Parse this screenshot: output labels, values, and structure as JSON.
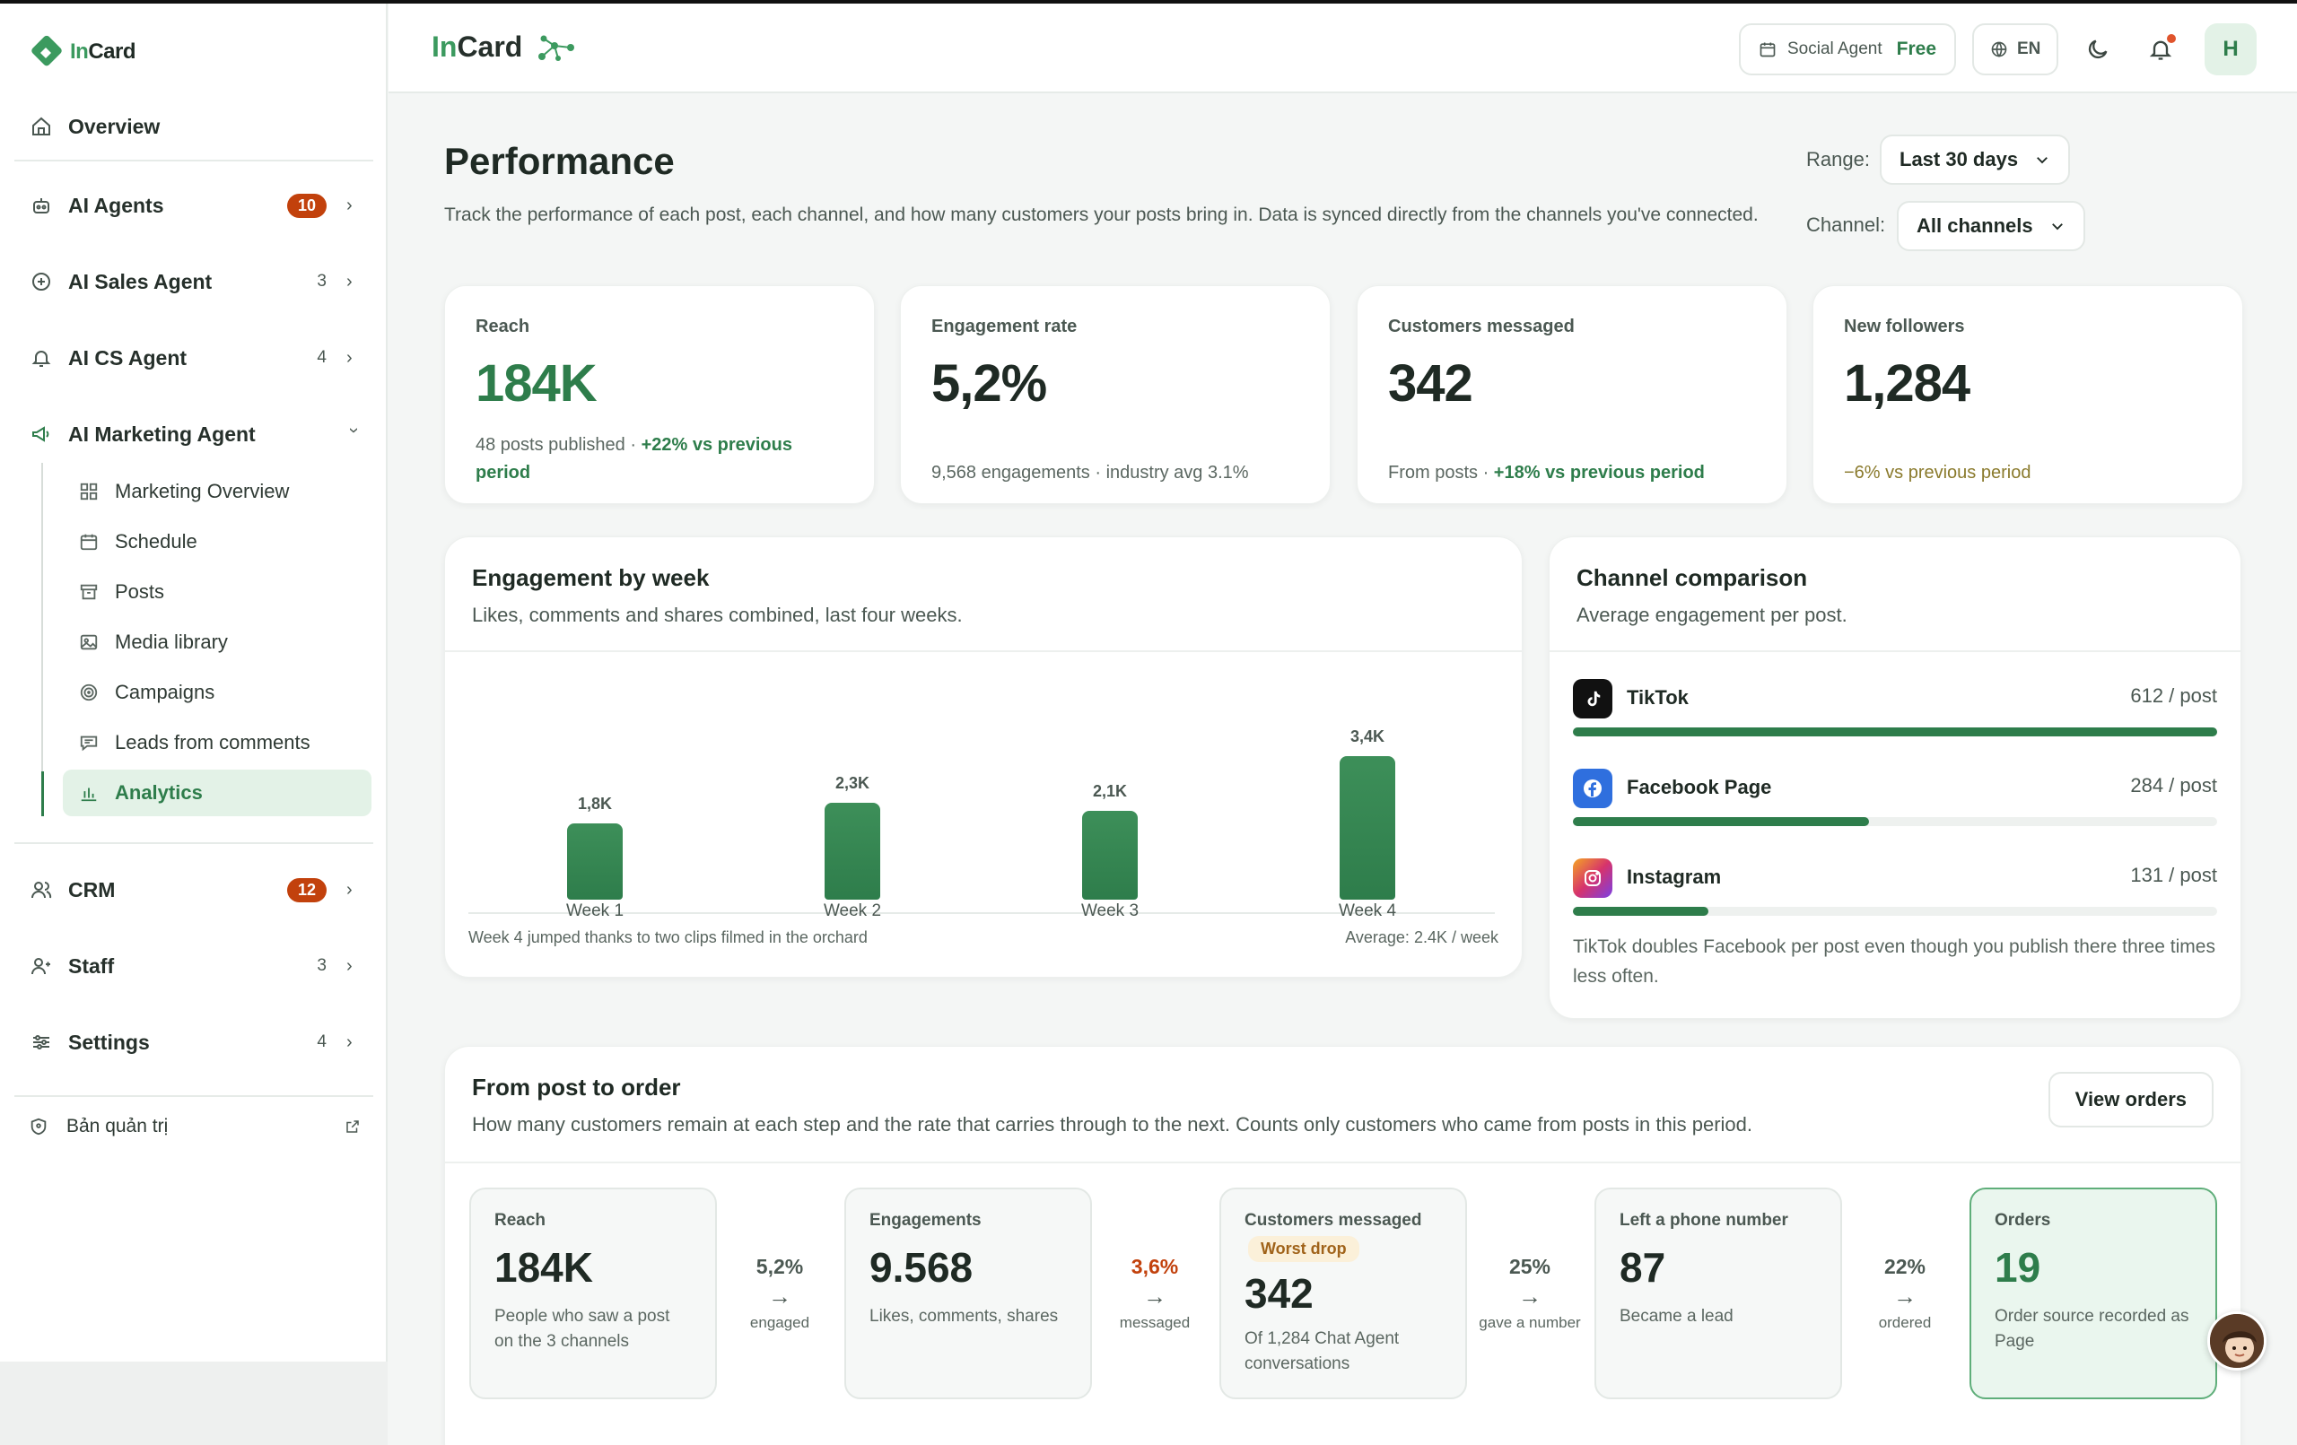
{
  "sidebar": {
    "logo": {
      "prefix": "In",
      "suffix": "Card"
    },
    "overview": "Overview",
    "items": [
      {
        "label": "AI Agents",
        "badge": "10"
      },
      {
        "label": "AI Sales Agent",
        "count": "3"
      },
      {
        "label": "AI CS Agent",
        "count": "4"
      },
      {
        "label": "AI Marketing Agent"
      }
    ],
    "sub_items": [
      "Marketing Overview",
      "Schedule",
      "Posts",
      "Media library",
      "Campaigns",
      "Leads from comments",
      "Analytics"
    ],
    "bottom_items": [
      {
        "label": "CRM",
        "badge": "12"
      },
      {
        "label": "Staff",
        "count": "3"
      },
      {
        "label": "Settings",
        "count": "4"
      }
    ],
    "admin": "Bản quản trị"
  },
  "topbar": {
    "brand_prefix": "In",
    "brand_suffix": "Card",
    "plan_label": "Social Agent",
    "plan_tier": "Free",
    "language": "EN",
    "avatar_initial": "H"
  },
  "page": {
    "title": "Performance",
    "subtitle": "Track the performance of each post, each channel, and how many customers your posts bring in. Data is synced directly from the channels you've connected.",
    "range_label": "Range:",
    "range_value": "Last 30 days",
    "channel_label": "Channel:",
    "channel_value": "All channels"
  },
  "kpis": [
    {
      "label": "Reach",
      "value": "184K",
      "note": "48 posts published · ",
      "delta": "+22% vs previous period"
    },
    {
      "label": "Engagement rate",
      "value": "5,2%",
      "note": "9,568 engagements · industry avg 3.1%"
    },
    {
      "label": "Customers messaged",
      "value": "342",
      "note": "From posts · ",
      "delta": "+18% vs previous period"
    },
    {
      "label": "New followers",
      "value": "1,284",
      "delta": "−6% vs previous period"
    }
  ],
  "engagement_panel": {
    "title": "Engagement by week",
    "subtitle": "Likes, comments and shares combined, last four weeks.",
    "footnote": "Week 4 jumped thanks to two clips filmed in the orchard",
    "average": "Average: 2.4K / week"
  },
  "chart_data": {
    "type": "bar",
    "categories": [
      "Week 1",
      "Week 2",
      "Week 3",
      "Week 4"
    ],
    "values": [
      1.8,
      2.3,
      2.1,
      3.4
    ],
    "value_labels": [
      "1,8K",
      "2,3K",
      "2,1K",
      "3,4K"
    ],
    "ylim": [
      0,
      3.4
    ],
    "color": "#2e7d4b"
  },
  "channel_panel": {
    "title": "Channel comparison",
    "subtitle": "Average engagement per post.",
    "channels": [
      {
        "name": "TikTok",
        "value": "612 / post",
        "fraction": 1.0,
        "color": "#111111"
      },
      {
        "name": "Facebook Page",
        "value": "284 / post",
        "fraction": 0.46,
        "color": "#2f6fde"
      },
      {
        "name": "Instagram",
        "value": "131 / post",
        "fraction": 0.21,
        "color": "#d6336c"
      }
    ],
    "note": "TikTok doubles Facebook per post even though you publish there three times less often."
  },
  "funnel": {
    "title": "From post to order",
    "subtitle": "How many customers remain at each step and the rate that carries through to the next. Counts only customers who came from posts in this period.",
    "view_button": "View orders",
    "steps": [
      {
        "label": "Reach",
        "value": "184K",
        "desc": "People who saw a post on the 3 channels"
      },
      {
        "label": "Engagements",
        "value": "9.568",
        "desc": "Likes, comments, shares"
      },
      {
        "label": "Customers messaged",
        "tag": "Worst drop",
        "value": "342",
        "desc": "Of 1,284 Chat Agent conversations"
      },
      {
        "label": "Left a phone number",
        "value": "87",
        "desc": "Became a lead"
      },
      {
        "label": "Orders",
        "value": "19",
        "desc": "Order source recorded as Page"
      }
    ],
    "conversions": [
      {
        "pct": "5,2%",
        "label": "engaged"
      },
      {
        "pct": "3,6%",
        "label": "messaged"
      },
      {
        "pct": "25%",
        "label": "gave a number"
      },
      {
        "pct": "22%",
        "label": "ordered"
      }
    ]
  }
}
